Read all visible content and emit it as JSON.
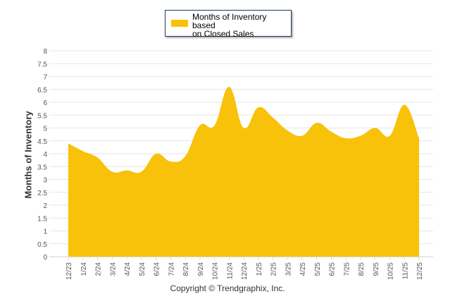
{
  "chart_data": {
    "type": "area",
    "title": "",
    "xlabel": "",
    "ylabel": "Months of Inventory",
    "ylim": [
      0,
      8
    ],
    "ytick_step": 0.5,
    "yticks": [
      "0",
      "0.5",
      "1",
      "1.5",
      "2",
      "2.5",
      "3",
      "3.5",
      "4",
      "4.5",
      "5",
      "5.5",
      "6",
      "6.5",
      "7",
      "7.5",
      "8"
    ],
    "grid": true,
    "legend_position": "top-center",
    "categories": [
      "12/23",
      "1/24",
      "2/24",
      "3/24",
      "4/24",
      "5/24",
      "6/24",
      "7/24",
      "8/24",
      "9/24",
      "10/24",
      "11/24",
      "12/24",
      "1/25",
      "2/25",
      "3/25",
      "4/25",
      "5/25",
      "6/25",
      "7/25",
      "8/25",
      "9/25",
      "10/25",
      "11/25",
      "12/25"
    ],
    "series": [
      {
        "name": "Months of Inventory based on Closed Sales",
        "color": "#f8c20a",
        "values": [
          4.4,
          4.1,
          3.85,
          3.3,
          3.35,
          3.3,
          4.0,
          3.7,
          3.9,
          5.1,
          5.1,
          6.6,
          5.0,
          5.8,
          5.4,
          4.9,
          4.7,
          5.2,
          4.85,
          4.6,
          4.7,
          5.0,
          4.7,
          5.9,
          4.6
        ]
      }
    ]
  },
  "legend": {
    "label": "Months of Inventory based\non Closed Sales"
  },
  "footer": {
    "copyright": "Copyright © Trendgraphix, Inc."
  }
}
